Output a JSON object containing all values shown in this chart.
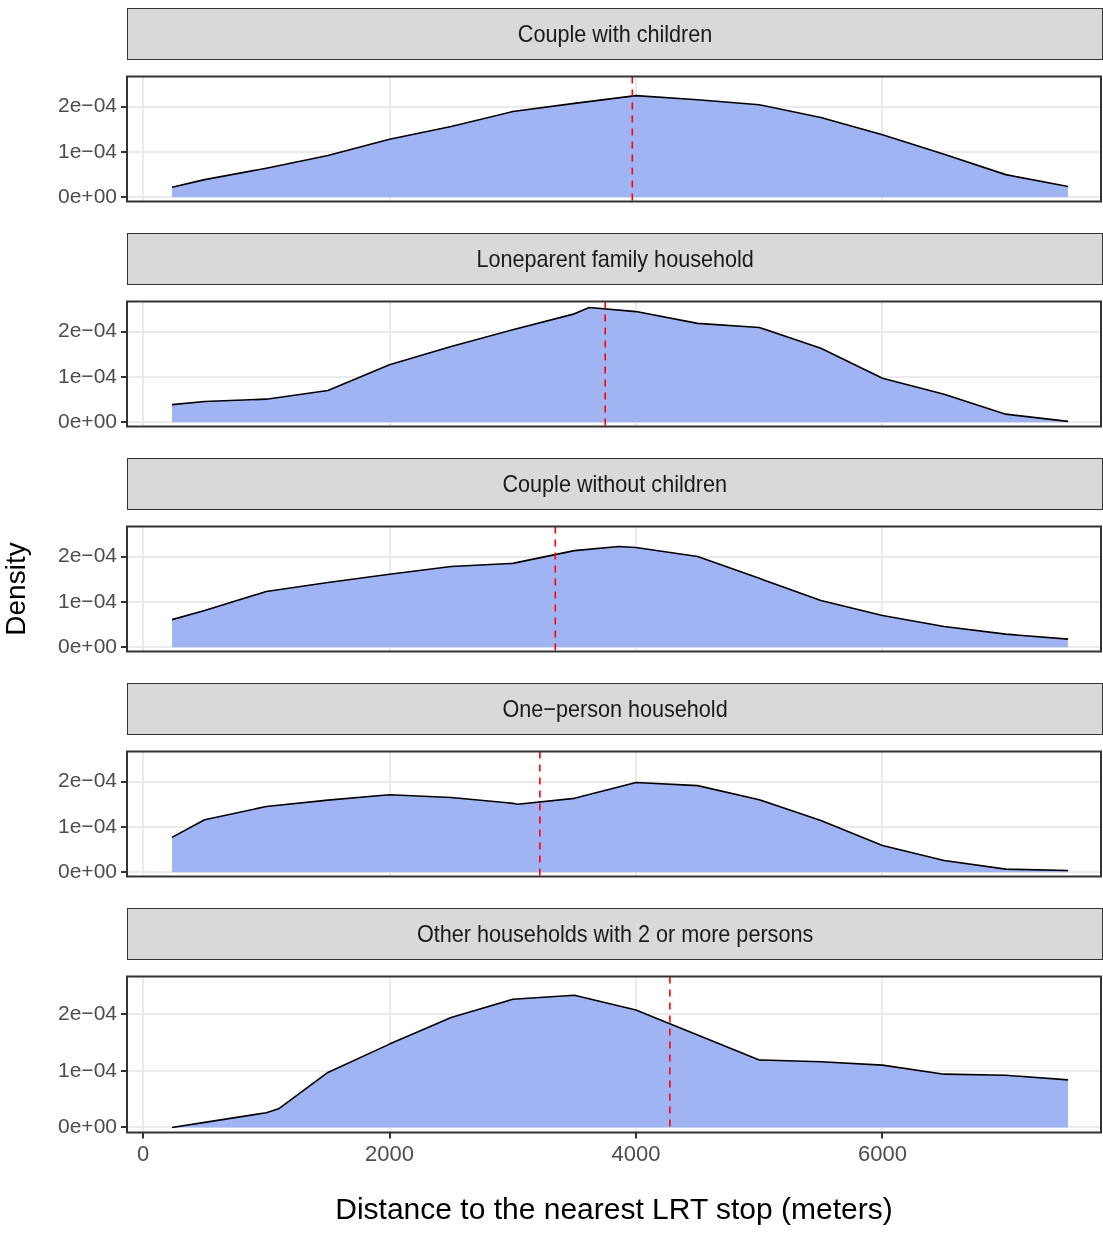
{
  "chart_data": [
    {
      "type": "area",
      "title": "Couple with children",
      "x": [
        235,
        500,
        1000,
        1500,
        2000,
        2500,
        3000,
        3500,
        4000,
        4500,
        5000,
        5500,
        6000,
        6500,
        7000,
        7506
      ],
      "xlim": [
        -130,
        7773
      ],
      "xticks": [
        0,
        2000,
        4000,
        6000
      ],
      "ylim": [
        -9e-06,
        0.000266
      ],
      "yticks": [
        {
          "value": 0,
          "label": "0e+00"
        },
        {
          "value": 0.0001,
          "label": "1e−04"
        },
        {
          "value": 0.0002,
          "label": "2e−04"
        }
      ],
      "grid": true,
      "tick_labels": "y",
      "series": [
        {
          "color": "#a0b4f4",
          "values": [
            2.2e-05,
            3.9e-05,
            6.4e-05,
            9.2e-05,
            0.000128,
            0.000156,
            0.000189,
            0.000207,
            0.000224,
            0.000215,
            0.000204,
            0.000176,
            0.000138,
            9.5e-05,
            5e-05,
            2.4e-05
          ]
        }
      ],
      "ref_lines": [
        {
          "axis": "x",
          "value": 3970,
          "color": "#ff0000",
          "line_style": "dashed"
        }
      ]
    },
    {
      "type": "area",
      "title": "Loneparent family household",
      "x": [
        235,
        500,
        1000,
        1500,
        2000,
        2500,
        3000,
        3500,
        3620,
        4000,
        4500,
        5000,
        5500,
        6000,
        6500,
        7000,
        7506
      ],
      "xlim": [
        -130,
        7773
      ],
      "xticks": [
        0,
        2000,
        4000,
        6000
      ],
      "ylim": [
        -9e-06,
        0.000266
      ],
      "yticks": [
        {
          "value": 0,
          "label": "0e+00"
        },
        {
          "value": 0.0001,
          "label": "1e−04"
        },
        {
          "value": 0.0002,
          "label": "2e−04"
        }
      ],
      "grid": true,
      "tick_labels": "y",
      "series": [
        {
          "color": "#a0b4f4",
          "values": [
            3.9e-05,
            4.6e-05,
            5.1e-05,
            7e-05,
            0.000127,
            0.000167,
            0.000204,
            0.000239,
            0.000253,
            0.000244,
            0.000218,
            0.000209,
            0.000163,
            9.7e-05,
            6.2e-05,
            1.8e-05,
            2e-06
          ]
        }
      ],
      "ref_lines": [
        {
          "axis": "x",
          "value": 3750,
          "color": "#ff0000",
          "line_style": "dashed"
        }
      ]
    },
    {
      "type": "area",
      "title": "Couple without children",
      "ylabel": "Density",
      "x": [
        235,
        500,
        1000,
        1500,
        2000,
        2500,
        3000,
        3500,
        3860,
        4000,
        4500,
        5000,
        5500,
        6000,
        6500,
        7000,
        7506
      ],
      "xlim": [
        -130,
        7773
      ],
      "xticks": [
        0,
        2000,
        4000,
        6000
      ],
      "ylim": [
        -9e-06,
        0.000266
      ],
      "yticks": [
        {
          "value": 0,
          "label": "0e+00"
        },
        {
          "value": 0.0001,
          "label": "1e−04"
        },
        {
          "value": 0.0002,
          "label": "2e−04"
        }
      ],
      "grid": true,
      "tick_labels": "y",
      "series": [
        {
          "color": "#a0b4f4",
          "values": [
            6.1e-05,
            8.1e-05,
            0.000123,
            0.000143,
            0.000161,
            0.000178,
            0.000185,
            0.000213,
            0.000222,
            0.00022,
            0.0002,
            0.000152,
            0.000103,
            7e-05,
            4.6e-05,
            2.9e-05,
            1.8e-05
          ]
        }
      ],
      "ref_lines": [
        {
          "axis": "x",
          "value": 3345,
          "color": "#ff0000",
          "line_style": "dashed"
        }
      ]
    },
    {
      "type": "area",
      "title": "One−person household",
      "x": [
        235,
        500,
        1000,
        1500,
        2000,
        2500,
        3000,
        3040,
        3500,
        4000,
        4500,
        5000,
        5500,
        6000,
        6500,
        7000,
        7506
      ],
      "xlim": [
        -130,
        7773
      ],
      "xticks": [
        0,
        2000,
        4000,
        6000
      ],
      "ylim": [
        -9e-06,
        0.000266
      ],
      "yticks": [
        {
          "value": 0,
          "label": "0e+00"
        },
        {
          "value": 0.0001,
          "label": "1e−04"
        },
        {
          "value": 0.0002,
          "label": "2e−04"
        }
      ],
      "grid": true,
      "tick_labels": "y",
      "series": [
        {
          "color": "#a0b4f4",
          "values": [
            7.7e-05,
            0.000116,
            0.000145,
            0.000159,
            0.000171,
            0.000165,
            0.000152,
            0.00015,
            0.000163,
            0.000198,
            0.000191,
            0.00016,
            0.000114,
            5.9e-05,
            2.6e-05,
            7e-06,
            4e-06
          ]
        }
      ],
      "ref_lines": [
        {
          "axis": "x",
          "value": 3220,
          "color": "#ff0000",
          "line_style": "dashed"
        }
      ]
    },
    {
      "type": "area",
      "title": "Other households with 2 or more persons",
      "xlabel": "Distance to the nearest LRT stop (meters)",
      "x": [
        235,
        500,
        1000,
        1100,
        1500,
        2000,
        2500,
        3000,
        3500,
        4000,
        4500,
        5000,
        5500,
        6000,
        6500,
        7000,
        7506
      ],
      "xlim": [
        -130,
        7773
      ],
      "xticks": [
        0,
        2000,
        4000,
        6000
      ],
      "ylim": [
        -9e-06,
        0.000266
      ],
      "yticks": [
        {
          "value": 0,
          "label": "0e+00"
        },
        {
          "value": 0.0001,
          "label": "1e−04"
        },
        {
          "value": 0.0002,
          "label": "2e−04"
        }
      ],
      "grid": true,
      "series": [
        {
          "color": "#a0b4f4",
          "values": [
            0,
            9e-06,
            2.6e-05,
            3.3e-05,
            9.7e-05,
            0.000147,
            0.000194,
            0.000226,
            0.000233,
            0.000207,
            0.000163,
            0.000119,
            0.000116,
            0.00011,
            9.4e-05,
            9.2e-05,
            8.4e-05
          ]
        }
      ],
      "ref_lines": [
        {
          "axis": "x",
          "value": 4275,
          "color": "#ff0000",
          "line_style": "dashed"
        }
      ]
    }
  ]
}
